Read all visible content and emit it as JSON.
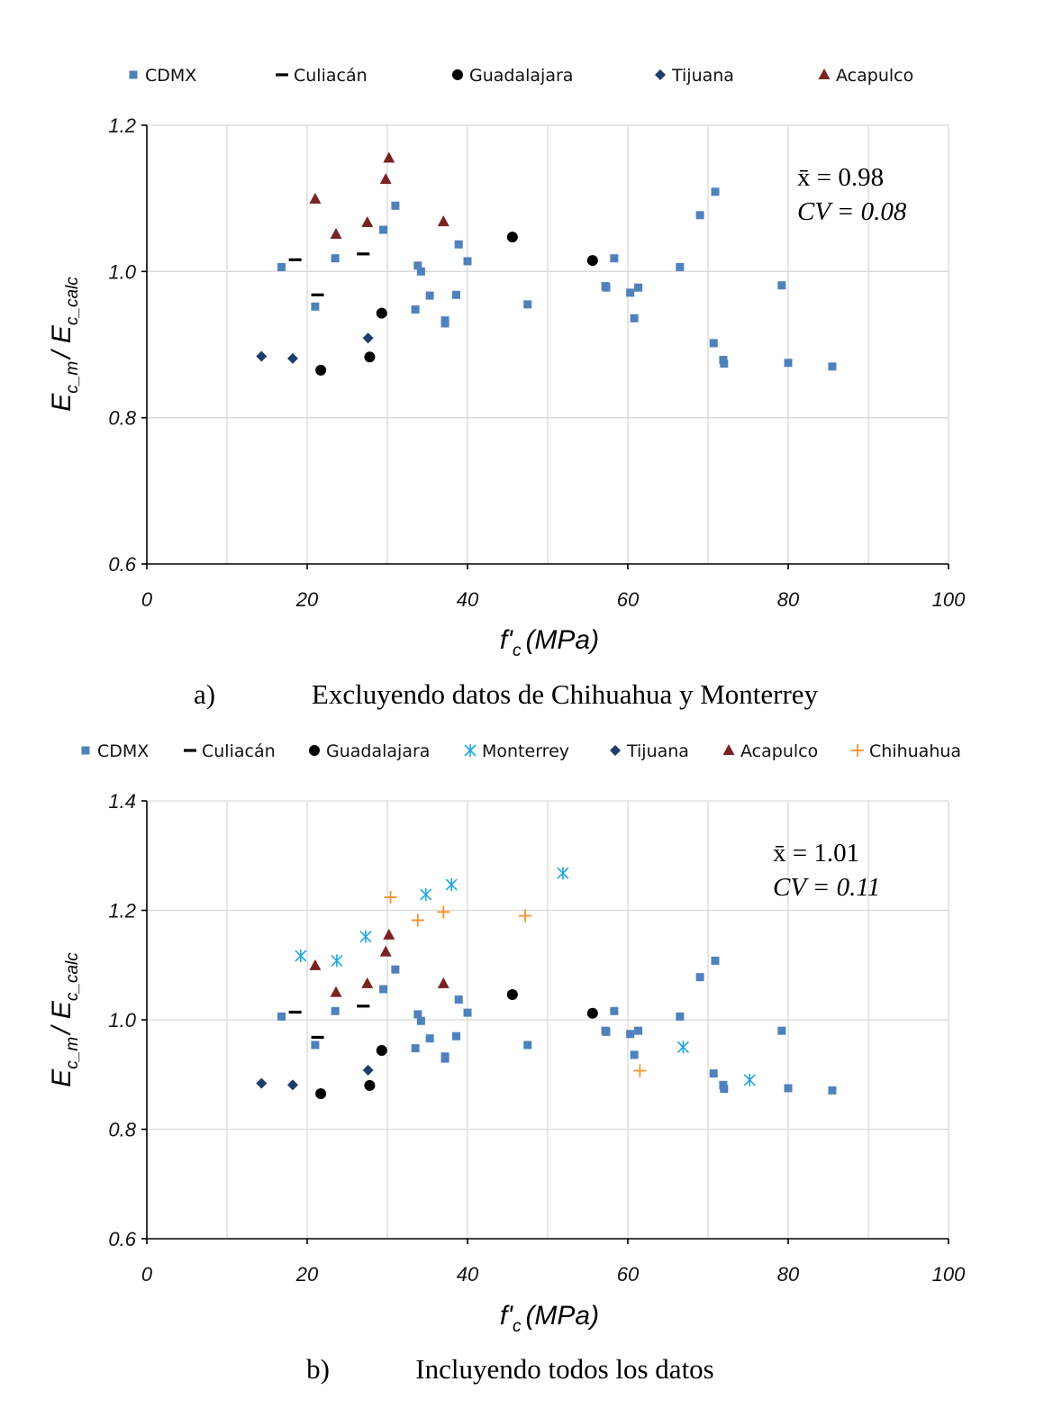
{
  "colors": {
    "CDMX": "#4f81bd",
    "Culiacán": "#000000",
    "Guadalajara": "#000000",
    "Monterrey": "#1fa7e0",
    "Tijuana": "#1f3d6b",
    "Acapulco": "#7a2323",
    "Chihuahua": "#f5922a"
  },
  "chart_data": [
    {
      "type": "scatter",
      "caption_letter": "a)",
      "caption_text": "Excluyendo datos de Chihuahua y Monterrey",
      "xlabel_main": "f'",
      "xlabel_sub": "c",
      "xlabel_unit": "(MPa)",
      "ylabel_parts": [
        "E",
        "c_m",
        "/ E",
        "c_calc"
      ],
      "xlim": [
        0,
        100
      ],
      "ylim": [
        0.6,
        1.2
      ],
      "xticks": [
        "0",
        "20",
        "40",
        "60",
        "80",
        "100"
      ],
      "yticks": [
        "0.6",
        "0.8",
        "1.0",
        "1.2"
      ],
      "stats": {
        "mean": "x̄ = 0.98",
        "cv": "CV = 0.08"
      },
      "legend": [
        {
          "name": "CDMX",
          "marker": "square"
        },
        {
          "name": "Culiacán",
          "marker": "dash"
        },
        {
          "name": "Guadalajara",
          "marker": "circle"
        },
        {
          "name": "Tijuana",
          "marker": "diamond"
        },
        {
          "name": "Acapulco",
          "marker": "triangle"
        }
      ],
      "series": [
        {
          "name": "CDMX",
          "marker": "square",
          "points": [
            [
              16.8,
              1.006
            ],
            [
              21.0,
              0.952
            ],
            [
              23.5,
              1.018
            ],
            [
              29.5,
              1.057
            ],
            [
              31.0,
              1.09
            ],
            [
              33.5,
              0.948
            ],
            [
              33.8,
              1.008
            ],
            [
              34.2,
              1.0
            ],
            [
              35.3,
              0.967
            ],
            [
              37.2,
              0.933
            ],
            [
              37.2,
              0.929
            ],
            [
              38.6,
              0.968
            ],
            [
              38.9,
              1.037
            ],
            [
              40.0,
              1.014
            ],
            [
              47.5,
              0.955
            ],
            [
              57.2,
              0.98
            ],
            [
              57.3,
              0.978
            ],
            [
              58.3,
              1.018
            ],
            [
              60.3,
              0.971
            ],
            [
              60.8,
              0.936
            ],
            [
              61.3,
              0.978
            ],
            [
              66.5,
              1.006
            ],
            [
              69.0,
              1.077
            ],
            [
              70.7,
              0.902
            ],
            [
              70.9,
              1.109
            ],
            [
              71.9,
              0.879
            ],
            [
              72.0,
              0.874
            ],
            [
              79.2,
              0.981
            ],
            [
              80.0,
              0.875
            ],
            [
              85.5,
              0.87
            ]
          ]
        },
        {
          "name": "Culiacán",
          "marker": "dash",
          "points": [
            [
              18.5,
              1.016
            ],
            [
              21.3,
              0.968
            ],
            [
              27.0,
              1.024
            ]
          ]
        },
        {
          "name": "Guadalajara",
          "marker": "circle",
          "points": [
            [
              21.7,
              0.865
            ],
            [
              27.8,
              0.883
            ],
            [
              29.3,
              0.943
            ],
            [
              45.6,
              1.047
            ],
            [
              55.6,
              1.015
            ]
          ]
        },
        {
          "name": "Tijuana",
          "marker": "diamond",
          "points": [
            [
              14.3,
              0.884
            ],
            [
              18.2,
              0.881
            ],
            [
              27.6,
              0.909
            ]
          ]
        },
        {
          "name": "Acapulco",
          "marker": "triangle",
          "points": [
            [
              21.0,
              1.099
            ],
            [
              23.6,
              1.051
            ],
            [
              27.5,
              1.067
            ],
            [
              29.8,
              1.126
            ],
            [
              30.2,
              1.155
            ],
            [
              37.0,
              1.068
            ]
          ]
        }
      ]
    },
    {
      "type": "scatter",
      "caption_letter": "b)",
      "caption_text": "Incluyendo todos los datos",
      "xlabel_main": "f'",
      "xlabel_sub": "c",
      "xlabel_unit": "(MPa)",
      "ylabel_parts": [
        "E",
        "c_m",
        "/ E",
        "c_calc"
      ],
      "xlim": [
        0,
        100
      ],
      "ylim": [
        0.6,
        1.4
      ],
      "xticks": [
        "0",
        "20",
        "40",
        "60",
        "80",
        "100"
      ],
      "yticks": [
        "0.6",
        "0.8",
        "1.0",
        "1.2",
        "1.4"
      ],
      "stats": {
        "mean": "x̄ = 1.01",
        "cv": "CV = 0.11"
      },
      "legend": [
        {
          "name": "CDMX",
          "marker": "square"
        },
        {
          "name": "Culiacán",
          "marker": "dash"
        },
        {
          "name": "Guadalajara",
          "marker": "circle"
        },
        {
          "name": "Monterrey",
          "marker": "star"
        },
        {
          "name": "Tijuana",
          "marker": "diamond"
        },
        {
          "name": "Acapulco",
          "marker": "triangle"
        },
        {
          "name": "Chihuahua",
          "marker": "plus"
        }
      ],
      "series": [
        {
          "name": "CDMX",
          "marker": "square",
          "points": [
            [
              16.8,
              1.006
            ],
            [
              21.0,
              0.954
            ],
            [
              23.5,
              1.016
            ],
            [
              29.5,
              1.056
            ],
            [
              31.0,
              1.092
            ],
            [
              33.5,
              0.948
            ],
            [
              33.8,
              1.01
            ],
            [
              34.2,
              0.998
            ],
            [
              35.3,
              0.966
            ],
            [
              37.2,
              0.933
            ],
            [
              37.2,
              0.929
            ],
            [
              38.6,
              0.97
            ],
            [
              38.9,
              1.037
            ],
            [
              40.0,
              1.013
            ],
            [
              47.5,
              0.954
            ],
            [
              57.2,
              0.98
            ],
            [
              57.3,
              0.978
            ],
            [
              58.3,
              1.016
            ],
            [
              60.3,
              0.974
            ],
            [
              60.8,
              0.936
            ],
            [
              61.3,
              0.98
            ],
            [
              66.5,
              1.006
            ],
            [
              69.0,
              1.078
            ],
            [
              70.7,
              0.902
            ],
            [
              70.9,
              1.108
            ],
            [
              71.9,
              0.881
            ],
            [
              72.0,
              0.874
            ],
            [
              79.2,
              0.98
            ],
            [
              80.0,
              0.875
            ],
            [
              85.5,
              0.871
            ]
          ]
        },
        {
          "name": "Culiacán",
          "marker": "dash",
          "points": [
            [
              18.5,
              1.014
            ],
            [
              21.3,
              0.968
            ],
            [
              27.0,
              1.025
            ]
          ]
        },
        {
          "name": "Guadalajara",
          "marker": "circle",
          "points": [
            [
              21.7,
              0.865
            ],
            [
              27.8,
              0.88
            ],
            [
              29.3,
              0.944
            ],
            [
              45.6,
              1.046
            ],
            [
              55.6,
              1.012
            ]
          ]
        },
        {
          "name": "Monterrey",
          "marker": "star",
          "points": [
            [
              19.2,
              1.117
            ],
            [
              23.7,
              1.108
            ],
            [
              27.3,
              1.152
            ],
            [
              34.8,
              1.229
            ],
            [
              38.0,
              1.247
            ],
            [
              51.9,
              1.268
            ],
            [
              66.9,
              0.95
            ],
            [
              75.2,
              0.89
            ]
          ]
        },
        {
          "name": "Tijuana",
          "marker": "diamond",
          "points": [
            [
              14.3,
              0.884
            ],
            [
              18.2,
              0.881
            ],
            [
              27.6,
              0.908
            ]
          ]
        },
        {
          "name": "Acapulco",
          "marker": "triangle",
          "points": [
            [
              21.0,
              1.099
            ],
            [
              23.6,
              1.05
            ],
            [
              27.5,
              1.066
            ],
            [
              29.8,
              1.124
            ],
            [
              30.2,
              1.155
            ],
            [
              37.0,
              1.066
            ]
          ]
        },
        {
          "name": "Chihuahua",
          "marker": "plus",
          "points": [
            [
              30.4,
              1.224
            ],
            [
              33.8,
              1.182
            ],
            [
              37.0,
              1.197
            ],
            [
              47.2,
              1.19
            ],
            [
              61.5,
              0.907
            ]
          ]
        }
      ]
    }
  ]
}
